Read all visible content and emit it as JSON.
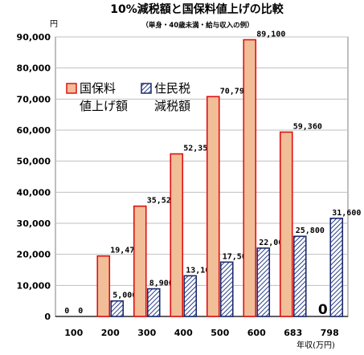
{
  "chart_data": {
    "type": "bar",
    "title": "10%減税額と国保料値上げの比較",
    "subtitle": "（単身・40歳未満・給与収入の例）",
    "yunit": "円",
    "xunit": "年収(万円)",
    "categories": [
      "100",
      "200",
      "300",
      "400",
      "500",
      "600",
      "683",
      "798"
    ],
    "ylim": [
      0,
      90000
    ],
    "yticks": [
      0,
      10000,
      20000,
      30000,
      40000,
      50000,
      60000,
      70000,
      80000,
      90000
    ],
    "ytick_labels": [
      "0",
      "10,000",
      "20,000",
      "30,000",
      "40,000",
      "50,000",
      "60,000",
      "70,000",
      "80,000",
      "90,000"
    ],
    "grid": true,
    "legend_position": "upper-left",
    "series": [
      {
        "legend": [
          "国保料",
          "値上げ額"
        ],
        "values": [
          0,
          19470,
          35520,
          52350,
          70790,
          89100,
          59360,
          0
        ],
        "labels": [
          "0",
          "19,470",
          "35,520",
          "52,350",
          "70,790",
          "89,100",
          "59,360",
          "0"
        ],
        "color": "#f2be98",
        "edge": "#e01010"
      },
      {
        "legend": [
          "住民税",
          "減税額"
        ],
        "values": [
          0,
          5000,
          8900,
          13100,
          17500,
          22000,
          25800,
          31600
        ],
        "labels": [
          "0",
          "5,000",
          "8,900",
          "13,100",
          "17,500",
          "22,000",
          "25,800",
          "31,600"
        ],
        "color": "#ffffff",
        "edge": "#1a2a6c",
        "hatch": "#2a3f8c"
      }
    ]
  }
}
